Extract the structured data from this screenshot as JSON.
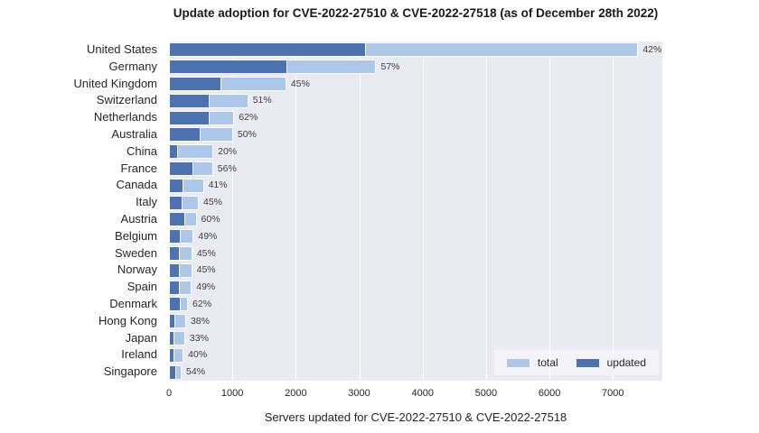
{
  "title": "Update adoption for CVE-2022-27510 & CVE-2022-27518 (as of December 28th 2022)",
  "colors": {
    "total_bar": "#AEC7E8",
    "updated_bar": "#4C72B0",
    "plot_background": "#EAEAF2",
    "gridline": "#FFFFFF"
  },
  "legend": {
    "position": "lower right",
    "entries": [
      {
        "label": "total",
        "color": "#AEC7E8"
      },
      {
        "label": "updated",
        "color": "#4C72B0"
      }
    ]
  },
  "chart_data": {
    "type": "bar",
    "orientation": "horizontal",
    "title": "Update adoption for CVE-2022-27510 & CVE-2022-27518 (as of December 28th 2022)",
    "xlabel": "Servers updated for CVE-2022-27510 & CVE-2022-27518",
    "ylabel": "",
    "xlim": [
      0,
      7780
    ],
    "xticks": [
      0,
      1000,
      2000,
      3000,
      4000,
      5000,
      6000,
      7000
    ],
    "grid": true,
    "legend_position": "lower right",
    "categories": [
      "United States",
      "Germany",
      "United Kingdom",
      "Switzerland",
      "Netherlands",
      "Australia",
      "China",
      "France",
      "Canada",
      "Italy",
      "Austria",
      "Belgium",
      "Sweden",
      "Norway",
      "Spain",
      "Denmark",
      "Hong Kong",
      "Japan",
      "Ireland",
      "Singapore"
    ],
    "series": [
      {
        "name": "total",
        "color": "#AEC7E8",
        "values": [
          7400,
          3270,
          1850,
          1250,
          1030,
          1010,
          700,
          695,
          550,
          470,
          435,
          390,
          368,
          365,
          360,
          300,
          270,
          255,
          230,
          200
        ]
      },
      {
        "name": "updated",
        "color": "#4C72B0",
        "values": [
          3108,
          1864,
          833,
          638,
          639,
          505,
          140,
          389,
          226,
          212,
          261,
          191,
          166,
          164,
          176,
          186,
          103,
          84,
          92,
          108
        ]
      }
    ],
    "bar_labels": [
      "42%",
      "57%",
      "45%",
      "51%",
      "62%",
      "50%",
      "20%",
      "56%",
      "41%",
      "45%",
      "60%",
      "49%",
      "45%",
      "45%",
      "49%",
      "62%",
      "38%",
      "33%",
      "40%",
      "54%"
    ]
  }
}
